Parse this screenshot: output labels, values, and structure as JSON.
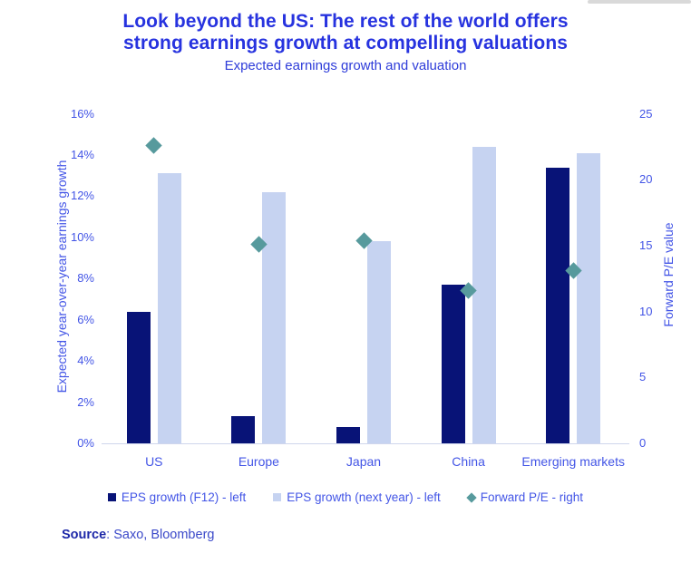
{
  "header": {
    "title_line1": "Look beyond the US: The rest of the world offers",
    "title_line2": "strong earnings growth at compelling valuations",
    "subtitle": "Expected earnings growth and valuation"
  },
  "chart_data": {
    "type": "bar",
    "title": "Expected earnings growth and valuation",
    "categories": [
      "US",
      "Europe",
      "Japan",
      "China",
      "Emerging markets"
    ],
    "series": [
      {
        "name": "EPS growth (F12) - left",
        "type": "bar",
        "axis": "left",
        "color": "#081377",
        "values": [
          6.4,
          1.3,
          0.8,
          7.7,
          13.4
        ]
      },
      {
        "name": "EPS growth (next year) - left",
        "type": "bar",
        "axis": "left",
        "color": "#c6d3f1",
        "values": [
          13.1,
          12.2,
          9.8,
          14.4,
          14.1
        ]
      },
      {
        "name": "Forward P/E - right",
        "type": "scatter",
        "marker": "diamond",
        "axis": "right",
        "color": "#579a9d",
        "values": [
          22.6,
          15.1,
          15.4,
          11.6,
          13.1
        ]
      }
    ],
    "left_axis": {
      "label": "Expected year-over-year earnings growth",
      "min": 0,
      "max": 16,
      "step": 2,
      "tick_suffix": "%"
    },
    "right_axis": {
      "label": "Forward P/E value",
      "min": 0,
      "max": 25,
      "step": 5,
      "tick_suffix": ""
    },
    "grid": false,
    "legend_position": "bottom"
  },
  "source": {
    "label": "Source",
    "text": ": Saxo, Bloomberg"
  },
  "colors": {
    "title_blue": "#2733df",
    "subtitle_blue": "#2e3cd9",
    "axis_blue": "#4355e6",
    "dark_bar": "#081377",
    "light_bar": "#c6d3f1",
    "diamond_teal": "#579a9d",
    "baseline": "#cfd6ec",
    "source_dark": "#1d28a8",
    "source_light": "#3b49c9",
    "sliver_grey": "#d9d9d9"
  }
}
